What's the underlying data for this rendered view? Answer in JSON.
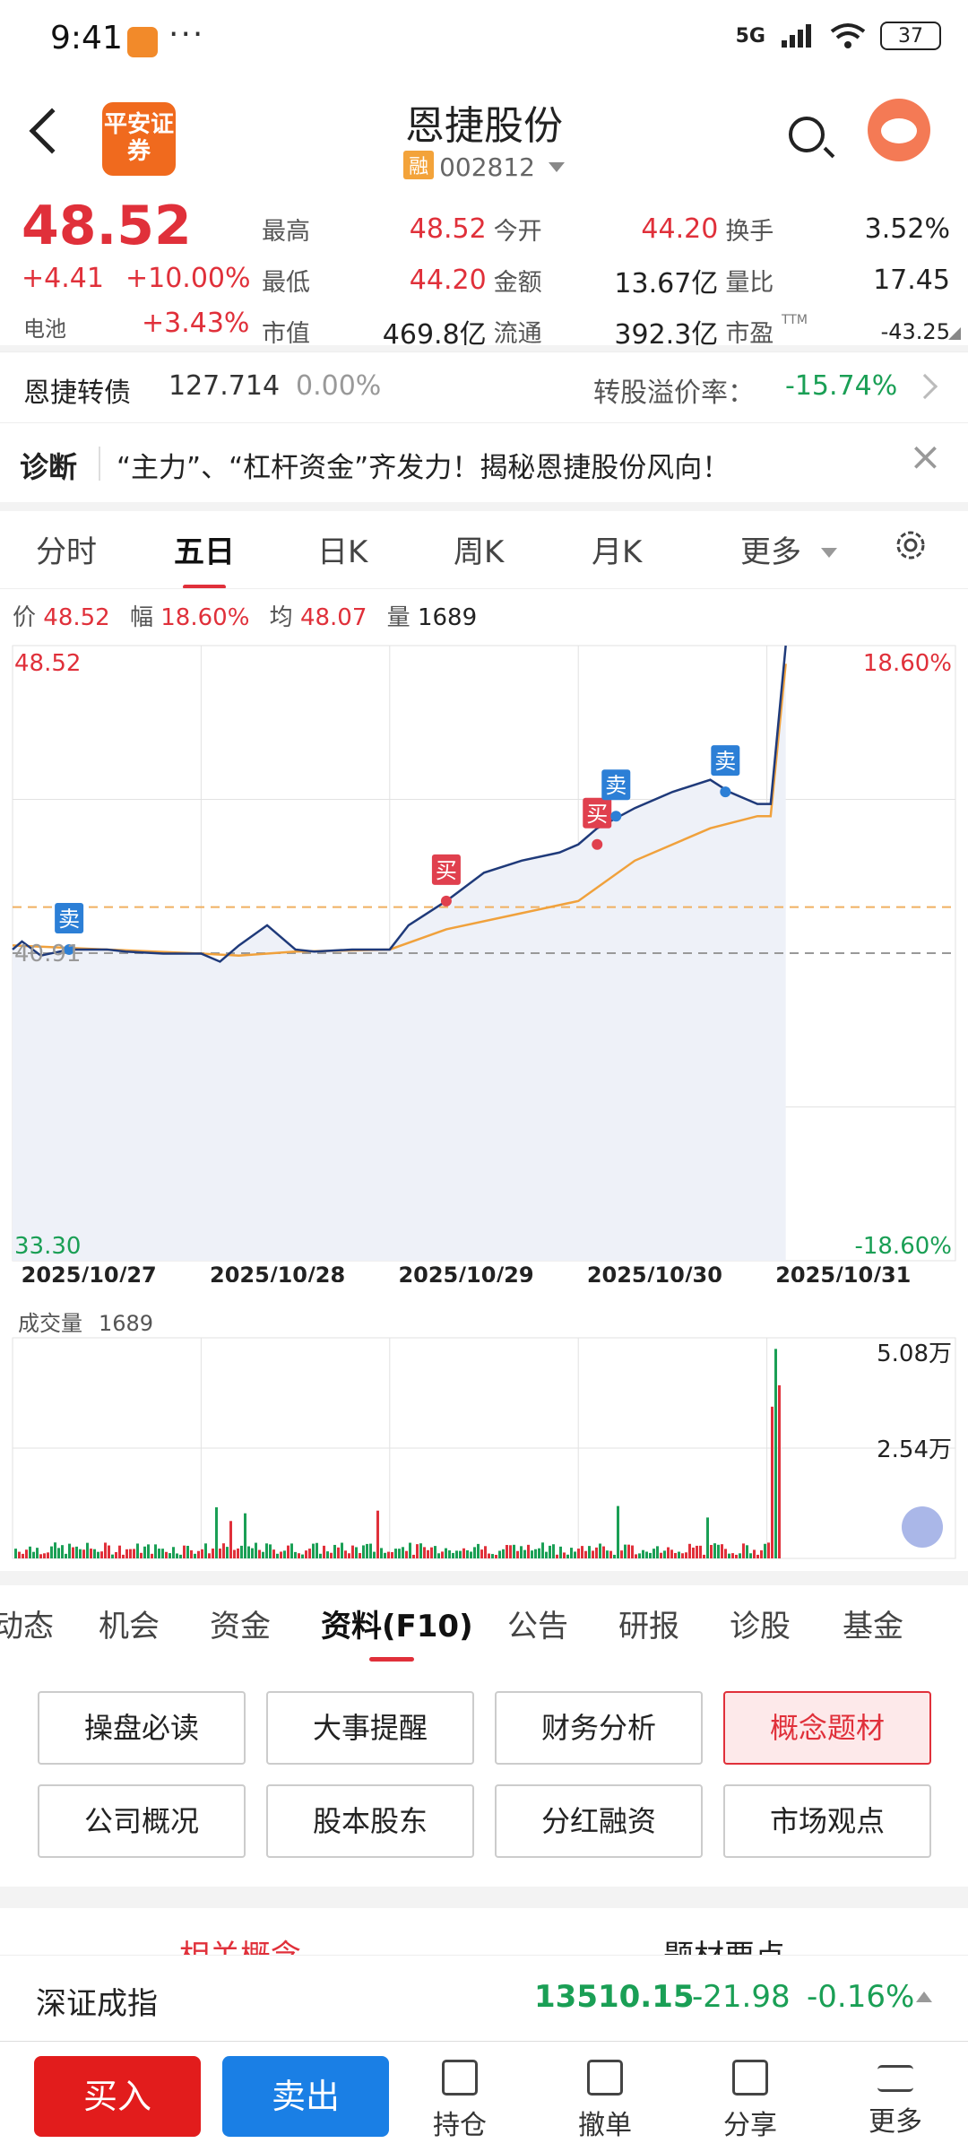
{
  "status_bar": {
    "time": "9:41",
    "dots": "···",
    "network": "5G",
    "battery": "37"
  },
  "header": {
    "logo_text": "平安证券",
    "title": "恩捷股份",
    "margin_badge": "融",
    "code": "002812"
  },
  "quote": {
    "price": "48.52",
    "change": "+4.41",
    "change_pct": "+10.00%",
    "sector": "电池",
    "sector_pct": "+3.43%",
    "fields": [
      [
        {
          "label": "最高",
          "value": "48.52",
          "color": "red"
        },
        {
          "label": "今开",
          "value": "44.20",
          "color": "red"
        },
        {
          "label": "换手",
          "value": "3.52%",
          "color": "black"
        }
      ],
      [
        {
          "label": "最低",
          "value": "44.20",
          "color": "red"
        },
        {
          "label": "金额",
          "value": "13.67亿",
          "color": "black"
        },
        {
          "label": "量比",
          "value": "17.45",
          "color": "black"
        }
      ],
      [
        {
          "label": "市值",
          "value": "469.8亿",
          "color": "black"
        },
        {
          "label": "流通",
          "value": "392.3亿",
          "color": "black"
        },
        {
          "label": "市盈",
          "value": "-43.25",
          "color": "black",
          "sup": "TTM"
        }
      ]
    ]
  },
  "bond": {
    "label": "恩捷转债",
    "value": "127.714",
    "pct": "0.00%",
    "premium_label": "转股溢价率：",
    "premium_value": "-15.74%"
  },
  "diagnosis": {
    "tag": "诊断",
    "text": "“主力”、“杠杆资金”齐发力！揭秘恩捷股份风向！"
  },
  "period_tabs": [
    {
      "label": "分时",
      "active": false
    },
    {
      "label": "五日",
      "active": true
    },
    {
      "label": "日K",
      "active": false
    },
    {
      "label": "周K",
      "active": false
    },
    {
      "label": "月K",
      "active": false
    },
    {
      "label": "更多",
      "active": false
    }
  ],
  "info_line": {
    "price_label": "价",
    "price": "48.52",
    "range_label": "幅",
    "range": "18.60%",
    "avg_label": "均",
    "avg": "48.07",
    "vol_label": "量",
    "vol": "1689"
  },
  "chart_data": {
    "type": "line",
    "title": "",
    "x_labels": [
      "2025/10/27",
      "2025/10/28",
      "2025/10/29",
      "2025/10/30",
      "2025/10/31"
    ],
    "ylim": [
      33.3,
      48.52
    ],
    "y_max_label": "48.52",
    "y_min_label": "33.30",
    "pct_max_label": "18.60%",
    "pct_min_label": "-18.60%",
    "prev_close_label": "40.91",
    "prev_close": 40.91,
    "dash_price": 42.05,
    "series": [
      {
        "name": "价",
        "color": "#1f3a7a",
        "x": [
          0,
          0.05,
          0.15,
          0.3,
          0.5,
          0.6,
          0.8,
          1.0,
          1.1,
          1.2,
          1.35,
          1.5,
          1.6,
          1.8,
          2.0,
          2.1,
          2.3,
          2.5,
          2.7,
          2.9,
          3.0,
          3.1,
          3.3,
          3.5,
          3.7,
          3.8,
          3.95,
          4.02,
          4.1
        ],
        "values": [
          41.0,
          41.2,
          40.85,
          41.0,
          41.0,
          40.95,
          40.9,
          40.9,
          40.7,
          41.1,
          41.6,
          41.0,
          40.95,
          41.0,
          41.0,
          41.6,
          42.2,
          42.9,
          43.2,
          43.4,
          43.6,
          44.0,
          44.5,
          44.9,
          45.2,
          44.9,
          44.6,
          44.6,
          48.52
        ]
      },
      {
        "name": "均",
        "color": "#f0a13c",
        "x": [
          0,
          0.5,
          1.0,
          1.2,
          1.5,
          2.0,
          2.3,
          2.7,
          3.0,
          3.3,
          3.7,
          3.95,
          4.02,
          4.1
        ],
        "values": [
          41.1,
          41.0,
          40.9,
          40.85,
          40.95,
          41.0,
          41.5,
          41.9,
          42.2,
          43.2,
          44.0,
          44.3,
          44.3,
          48.07
        ]
      }
    ],
    "markers": [
      {
        "label": "卖",
        "type": "sell",
        "x": 0.3,
        "price": 41.0
      },
      {
        "label": "买",
        "type": "buy",
        "x": 2.3,
        "price": 42.2
      },
      {
        "label": "买",
        "type": "buy",
        "x": 3.1,
        "price": 43.6
      },
      {
        "label": "卖",
        "type": "sell",
        "x": 3.2,
        "price": 44.3
      },
      {
        "label": "卖",
        "type": "sell",
        "x": 3.78,
        "price": 44.9
      }
    ]
  },
  "volume": {
    "label": "成交量",
    "value": "1689",
    "max_label": "5.08万",
    "mid_label": "2.54万"
  },
  "f10_tabs": [
    {
      "label": "动态",
      "active": false
    },
    {
      "label": "机会",
      "active": false
    },
    {
      "label": "资金",
      "active": false
    },
    {
      "label": "资料(F10)",
      "active": true
    },
    {
      "label": "公告",
      "active": false
    },
    {
      "label": "研报",
      "active": false
    },
    {
      "label": "诊股",
      "active": false
    },
    {
      "label": "基金",
      "active": false
    }
  ],
  "grid_buttons": [
    {
      "label": "操盘必读",
      "active": false
    },
    {
      "label": "大事提醒",
      "active": false
    },
    {
      "label": "财务分析",
      "active": false
    },
    {
      "label": "概念题材",
      "active": true
    },
    {
      "label": "公司概况",
      "active": false
    },
    {
      "label": "股本股东",
      "active": false
    },
    {
      "label": "分红融资",
      "active": false
    },
    {
      "label": "市场观点",
      "active": false
    }
  ],
  "concept_peek": [
    "相关概念",
    "题材要点"
  ],
  "index_bar": {
    "name": "深证成指",
    "value": "13510.15",
    "change": "-21.98",
    "pct": "-0.16%"
  },
  "bottom_bar": {
    "buy": "买入",
    "sell": "卖出",
    "nav": [
      "持仓",
      "撤单",
      "分享",
      "更多"
    ]
  }
}
